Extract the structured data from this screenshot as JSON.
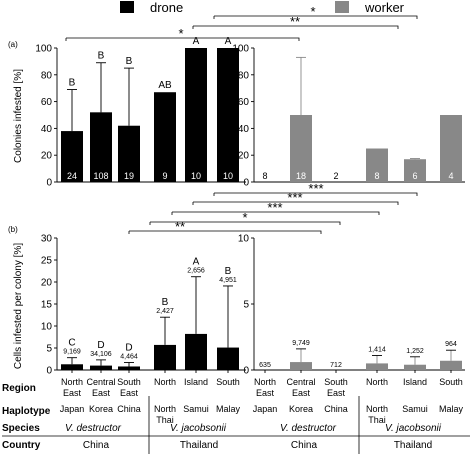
{
  "legend": [
    {
      "label": "drone",
      "color": "#000000"
    },
    {
      "label": "worker",
      "color": "#888888"
    }
  ],
  "panels": {
    "a": "(a)",
    "b": "(b)"
  },
  "sig": {
    "a_star": "*",
    "a_double": "**",
    "a_single2": "*",
    "b_triple1": "***",
    "b_triple2": "***",
    "b_triple3": "***",
    "b_single": "*",
    "b_double": "**"
  },
  "row_labels": {
    "region": "Region",
    "haplotype": "Haplotype",
    "species": "Species",
    "country": "Country"
  },
  "regions": [
    {
      "line1": "North",
      "line2": "East"
    },
    {
      "line1": "Central",
      "line2": "East"
    },
    {
      "line1": "South",
      "line2": "East"
    },
    {
      "line1": "North",
      "line2": ""
    },
    {
      "line1": "Island",
      "line2": ""
    },
    {
      "line1": "South",
      "line2": ""
    }
  ],
  "haplotypes": [
    {
      "line1": "Japan",
      "line2": ""
    },
    {
      "line1": "Korea",
      "line2": ""
    },
    {
      "line1": "China",
      "line2": ""
    },
    {
      "line1": "North",
      "line2": "Thai"
    },
    {
      "line1": "Samui",
      "line2": ""
    },
    {
      "line1": "Malay",
      "line2": ""
    }
  ],
  "species": [
    "V. destructor",
    "V. jacobsonii"
  ],
  "countries": [
    "China",
    "Thailand"
  ],
  "chart_data": [
    {
      "type": "bar",
      "panel": "a",
      "ylabel": "Colonies infested [%]",
      "ylim": [
        0,
        100
      ],
      "yticks": [
        0,
        20,
        40,
        60,
        80,
        100
      ],
      "categories": [
        "North East",
        "Central East",
        "South East",
        "North",
        "Island",
        "South"
      ],
      "series": [
        {
          "name": "drone",
          "values": [
            38,
            52,
            42,
            67,
            100,
            100
          ],
          "errors": [
            31,
            37,
            43,
            0,
            0,
            0
          ],
          "letters": [
            "B",
            "B",
            "B",
            "AB",
            "A",
            "A"
          ],
          "n": [
            "24",
            "108",
            "19",
            "9",
            "10",
            "10"
          ]
        },
        {
          "name": "worker",
          "values": [
            0,
            50,
            0,
            25,
            17,
            50
          ],
          "errors": [
            0,
            43,
            0,
            0,
            0.5,
            0
          ],
          "n": [
            "8",
            "18",
            "2",
            "8",
            "6",
            "4"
          ]
        }
      ]
    },
    {
      "type": "bar",
      "panel": "b",
      "ylabel": "Cells infested per colony [%]",
      "ylim": [
        0,
        30
      ],
      "yticks": [
        0,
        5,
        10,
        15,
        20,
        25,
        30
      ],
      "right_yticks": [
        0,
        5,
        10
      ],
      "categories": [
        "North East",
        "Central East",
        "South East",
        "North",
        "Island",
        "South"
      ],
      "series": [
        {
          "name": "drone",
          "values": [
            1.3,
            1.0,
            0.8,
            5.7,
            8.2,
            5.1
          ],
          "errors": [
            1.5,
            1.3,
            0.9,
            6.3,
            13.0,
            14.0
          ],
          "letters": [
            "C",
            "D",
            "D",
            "B",
            "A",
            "B"
          ],
          "n": [
            "9,169",
            "34,106",
            "4,464",
            "2,427",
            "2,656",
            "4,951"
          ]
        },
        {
          "name": "worker",
          "values": [
            0,
            0.6,
            0,
            0.5,
            0.4,
            0.7
          ],
          "errors": [
            0,
            1.0,
            0,
            0.6,
            0.6,
            0.8
          ],
          "n": [
            "635",
            "9,749",
            "712",
            "1,414",
            "1,252",
            "964"
          ]
        }
      ]
    }
  ]
}
